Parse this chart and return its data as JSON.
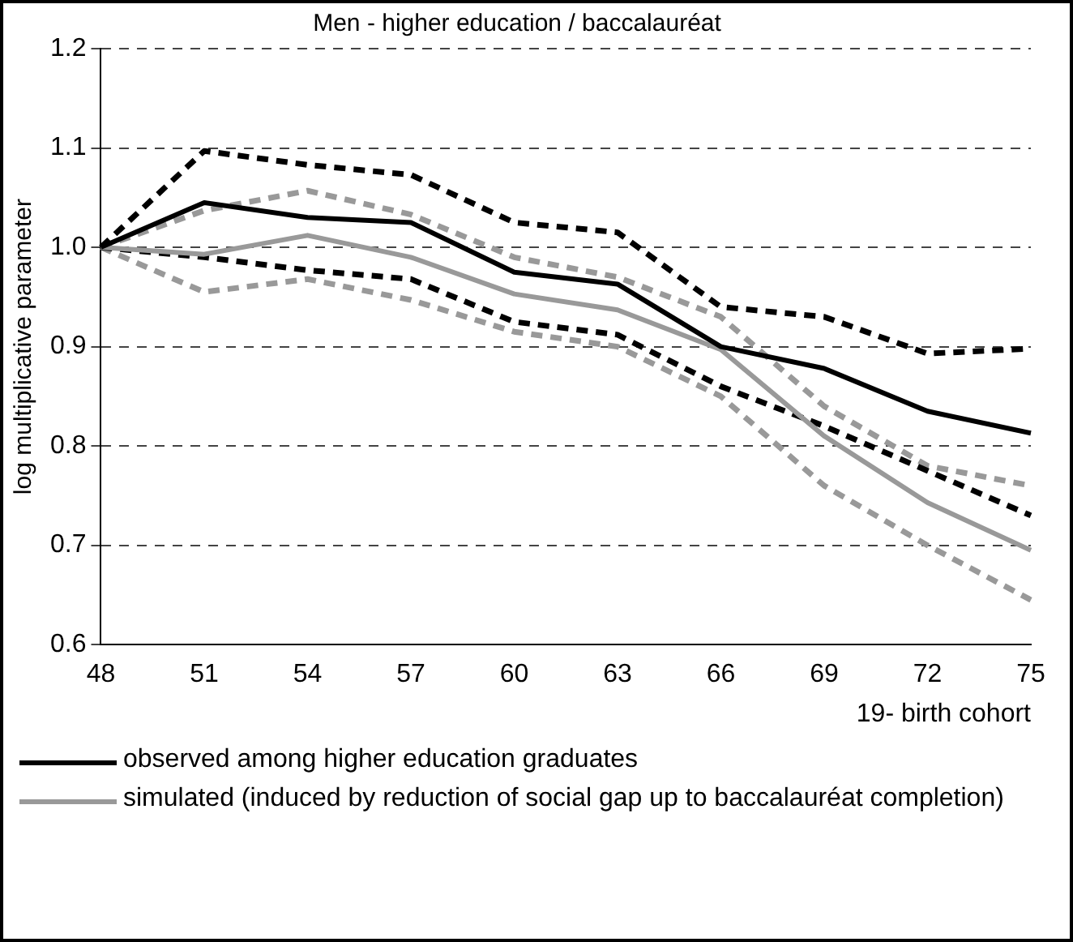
{
  "chart_data": {
    "type": "line",
    "title": "Men - higher education / baccalauréat",
    "xlabel": "19- birth cohort",
    "ylabel": "log multiplicative parameter",
    "categories": [
      "48",
      "51",
      "54",
      "57",
      "60",
      "63",
      "66",
      "69",
      "72",
      "75"
    ],
    "series": [
      {
        "name": "observed among higher education graduates",
        "color": "#000000",
        "values": [
          1.0,
          1.045,
          1.03,
          1.025,
          0.975,
          0.963,
          0.9,
          0.878,
          0.835,
          0.813
        ]
      },
      {
        "name": "simulated (induced by reduction of social gap up to baccalauréat completion)",
        "color": "#999999",
        "values": [
          1.0,
          0.993,
          1.012,
          0.99,
          0.953,
          0.937,
          0.897,
          0.81,
          0.743,
          0.695
        ]
      },
      {
        "color": "#000000",
        "line_style": "dashed",
        "values": [
          1.0,
          1.097,
          1.083,
          1.073,
          1.025,
          1.015,
          0.94,
          0.93,
          0.893,
          0.898
        ]
      },
      {
        "color": "#000000",
        "line_style": "dashed",
        "values": [
          1.0,
          0.99,
          0.977,
          0.968,
          0.925,
          0.912,
          0.86,
          0.82,
          0.775,
          0.73
        ]
      },
      {
        "color": "#999999",
        "line_style": "dashed",
        "values": [
          1.0,
          1.037,
          1.057,
          1.033,
          0.99,
          0.97,
          0.93,
          0.84,
          0.78,
          0.76
        ]
      },
      {
        "color": "#999999",
        "line_style": "dashed",
        "values": [
          1.0,
          0.955,
          0.968,
          0.947,
          0.915,
          0.9,
          0.85,
          0.76,
          0.7,
          0.645
        ]
      }
    ],
    "ylim": [
      0.6,
      1.2
    ],
    "yticks": [
      0.6,
      0.7,
      0.8,
      0.9,
      {
        "value": 1,
        "label": "1.0"
      },
      1.1,
      1.2
    ],
    "grid": "y",
    "legend": "bottom",
    "marker": "none",
    "line_style": "solid"
  }
}
